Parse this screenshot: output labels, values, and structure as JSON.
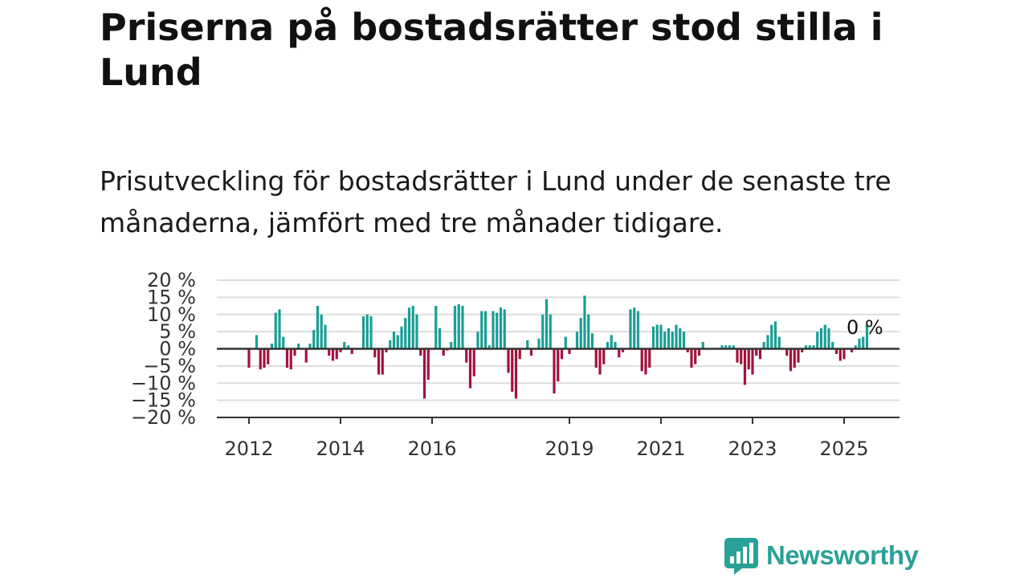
{
  "title": "Priserna på bostadsrätter stod stilla i Lund",
  "subtitle": "Prisutveckling för bostadsrätter i Lund under de senaste tre månaderna, jämfört med tre månader tidigare.",
  "brand": {
    "name": "Newsworthy",
    "logo_icon": "newsworthy-logo-icon"
  },
  "colors": {
    "positive": "#1a9e94",
    "negative": "#a3123e",
    "grid": "#dddddd",
    "zero_line": "#333333"
  },
  "chart_data": {
    "type": "bar",
    "x_start": "2012-01",
    "x_step": "month",
    "x_ticks": [
      {
        "date": "2012-01",
        "label": "2012"
      },
      {
        "date": "2014-01",
        "label": "2014"
      },
      {
        "date": "2016-01",
        "label": "2016"
      },
      {
        "date": "2019-01",
        "label": "2019"
      },
      {
        "date": "2021-01",
        "label": "2021"
      },
      {
        "date": "2023-01",
        "label": "2023"
      },
      {
        "date": "2025-01",
        "label": "2025"
      }
    ],
    "y_ticks": [
      20,
      15,
      10,
      5,
      0,
      -5,
      -10,
      -15,
      -20
    ],
    "y_tick_labels": [
      "20 %",
      "15 %",
      "10 %",
      "5 %",
      "0 %",
      "−5 %",
      "−10 %",
      "−15 %",
      "−20 %"
    ],
    "ylim": [
      -20,
      20
    ],
    "grid": true,
    "annotation": "0 %",
    "values": [
      -5.5,
      null,
      4,
      -6,
      -5.5,
      -4.5,
      1.5,
      10.5,
      11.5,
      3.5,
      -5.5,
      -6,
      -2,
      1.5,
      null,
      -4,
      1.5,
      5.5,
      12.5,
      10,
      7,
      -2,
      -3.5,
      -3,
      -1,
      2,
      1,
      -1.5,
      null,
      null,
      9.5,
      10,
      9.5,
      -2.5,
      -7.5,
      -7.5,
      -1,
      2.5,
      5,
      4,
      6.5,
      9,
      12,
      12.5,
      10,
      -2,
      -14.5,
      -9,
      null,
      12.5,
      6,
      -2,
      -0.5,
      2,
      12.5,
      13,
      12.5,
      -4,
      -11.5,
      -8,
      5,
      11,
      11,
      1,
      11,
      10.5,
      12,
      11.5,
      -7,
      -12.5,
      -14.5,
      -3,
      null,
      2.5,
      -2,
      null,
      3,
      10,
      14.5,
      10,
      -13,
      -9.5,
      -3,
      3.5,
      -1.5,
      null,
      5,
      9,
      15.5,
      10,
      4.5,
      -5.5,
      -7.5,
      -4.5,
      2,
      4,
      2,
      -2.5,
      -1,
      null,
      11.5,
      12,
      11,
      -6.5,
      -7.5,
      -5.5,
      6.5,
      7,
      7,
      5,
      6,
      5,
      7,
      6,
      5,
      -1,
      -5.5,
      -4.5,
      -2,
      2,
      null,
      null,
      null,
      null,
      1,
      1,
      1,
      1,
      -4,
      -4.5,
      -10.5,
      -6,
      -7.5,
      -2,
      -3,
      2,
      4,
      7,
      8,
      3.5,
      null,
      -2,
      -6.5,
      -5.5,
      -4,
      -1,
      1,
      1,
      1,
      5,
      6,
      7,
      6,
      2,
      -1.5,
      -3.5,
      -3,
      null,
      -1,
      1,
      3,
      3.5,
      7
    ]
  }
}
